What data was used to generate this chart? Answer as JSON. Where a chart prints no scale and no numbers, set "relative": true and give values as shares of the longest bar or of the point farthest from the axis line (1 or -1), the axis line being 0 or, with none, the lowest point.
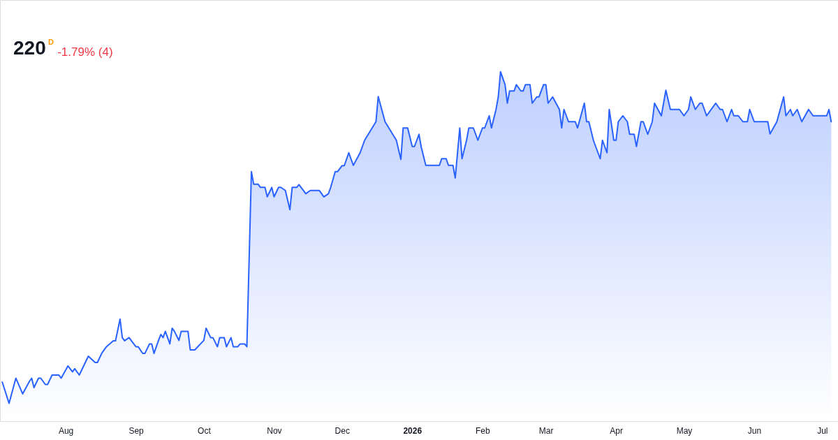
{
  "chart_data": {
    "type": "area",
    "title": "220$^{D}$",
    "subtitle": "-1.79% (4)",
    "relative": true,
    "xlim": [
      "2025-07-03",
      "2026-07-08"
    ],
    "xticks": [
      {
        "value": "2025-08-01",
        "label": "Aug"
      },
      {
        "value": "2025-09-01",
        "label": "Sep"
      },
      {
        "value": "2025-10-01",
        "label": "Oct"
      },
      {
        "value": "2025-11-01",
        "label": "Nov"
      },
      {
        "value": "2025-12-01",
        "label": "Dec"
      },
      {
        "value": "2026-01-01",
        "label": "2026"
      },
      {
        "value": "2026-02-01",
        "label": "Feb"
      },
      {
        "value": "2026-03-01",
        "label": "Mar"
      },
      {
        "value": "2026-04-01",
        "label": "Apr"
      },
      {
        "value": "2026-05-01",
        "label": "May"
      },
      {
        "value": "2026-06-01",
        "label": "Jun"
      },
      {
        "value": "2026-07-01",
        "label": "Jul"
      }
    ],
    "x": [
      "2025-07-04",
      "2025-07-07",
      "2025-07-10",
      "2025-07-13",
      "2025-07-16",
      "2025-07-17",
      "2025-07-18",
      "2025-07-20",
      "2025-07-21",
      "2025-07-23",
      "2025-07-24",
      "2025-07-26",
      "2025-07-29",
      "2025-07-30",
      "2025-08-02",
      "2025-08-04",
      "2025-08-05",
      "2025-08-07",
      "2025-08-11",
      "2025-08-14",
      "2025-08-15",
      "2025-08-17",
      "2025-08-19",
      "2025-08-22",
      "2025-08-23",
      "2025-08-25",
      "2025-08-26",
      "2025-08-27",
      "2025-08-29",
      "2025-08-30",
      "2025-09-01",
      "2025-09-02",
      "2025-09-04",
      "2025-09-05",
      "2025-09-07",
      "2025-09-08",
      "2025-09-09",
      "2025-09-11",
      "2025-09-12",
      "2025-09-13",
      "2025-09-14",
      "2025-09-16",
      "2025-09-17",
      "2025-09-18",
      "2025-09-20",
      "2025-09-21",
      "2025-09-24",
      "2025-09-25",
      "2025-09-27",
      "2025-10-01",
      "2025-10-02",
      "2025-10-04",
      "2025-10-05",
      "2025-10-07",
      "2025-10-08",
      "2025-10-10",
      "2025-10-11",
      "2025-10-13",
      "2025-10-14",
      "2025-10-16",
      "2025-10-17",
      "2025-10-19",
      "2025-10-20",
      "2025-10-22",
      "2025-10-23",
      "2025-10-25",
      "2025-10-26",
      "2025-10-28",
      "2025-10-29",
      "2025-10-31",
      "2025-11-01",
      "2025-11-03",
      "2025-11-04",
      "2025-11-06",
      "2025-11-08",
      "2025-11-09",
      "2025-11-11",
      "2025-11-12",
      "2025-11-14",
      "2025-11-15",
      "2025-11-17",
      "2025-11-21",
      "2025-11-23",
      "2025-11-25",
      "2025-11-26",
      "2025-11-28",
      "2025-11-29",
      "2025-12-01",
      "2025-12-02",
      "2025-12-04",
      "2025-12-06",
      "2025-12-09",
      "2025-12-11",
      "2025-12-16",
      "2025-12-17",
      "2025-12-20",
      "2025-12-25",
      "2025-12-27",
      "2025-12-28",
      "2025-12-30",
      "2026-01-01",
      "2026-01-02",
      "2026-01-04",
      "2026-01-05",
      "2026-01-07",
      "2026-01-13",
      "2026-01-14",
      "2026-01-16",
      "2026-01-17",
      "2026-01-19",
      "2026-01-20",
      "2026-01-22",
      "2026-01-23",
      "2026-01-25",
      "2026-01-26",
      "2026-01-28",
      "2026-01-30",
      "2026-02-01",
      "2026-02-02",
      "2026-02-04",
      "2026-02-05",
      "2026-02-07",
      "2026-02-08",
      "2026-02-09",
      "2026-02-11",
      "2026-02-12",
      "2026-02-13",
      "2026-02-15",
      "2026-02-16",
      "2026-02-18",
      "2026-02-19",
      "2026-02-20",
      "2026-02-22",
      "2026-02-23",
      "2026-02-25",
      "2026-02-26",
      "2026-02-28",
      "2026-03-01",
      "2026-03-02",
      "2026-03-04",
      "2026-03-07",
      "2026-03-08",
      "2026-03-09",
      "2026-03-11",
      "2026-03-14",
      "2026-03-15",
      "2026-03-18",
      "2026-03-19",
      "2026-03-20",
      "2026-03-22",
      "2026-03-23",
      "2026-03-25",
      "2026-03-26",
      "2026-03-28",
      "2026-03-29",
      "2026-03-31",
      "2026-04-01",
      "2026-04-02",
      "2026-04-04",
      "2026-04-06",
      "2026-04-07",
      "2026-04-09",
      "2026-04-10",
      "2026-04-12",
      "2026-04-13",
      "2026-04-15",
      "2026-04-17",
      "2026-04-18",
      "2026-04-21",
      "2026-04-23",
      "2026-04-25",
      "2026-04-29",
      "2026-05-01",
      "2026-05-03",
      "2026-05-04",
      "2026-05-06",
      "2026-05-08",
      "2026-05-09",
      "2026-05-11",
      "2026-05-15",
      "2026-05-17",
      "2026-05-18",
      "2026-05-20",
      "2026-05-22",
      "2026-05-23",
      "2026-05-25",
      "2026-05-27",
      "2026-05-29",
      "2026-05-30",
      "2026-06-01",
      "2026-06-07",
      "2026-06-08",
      "2026-06-11",
      "2026-06-14",
      "2026-06-15",
      "2026-06-17",
      "2026-06-18",
      "2026-06-20",
      "2026-06-22",
      "2026-06-25",
      "2026-06-27",
      "2026-07-03",
      "2026-07-04",
      "2026-07-05"
    ],
    "series": [
      {
        "color": "#2962ff",
        "values": [
          0.112,
          0.051,
          0.123,
          0.078,
          0.114,
          0.123,
          0.096,
          0.123,
          0.123,
          0.105,
          0.105,
          0.132,
          0.132,
          0.123,
          0.158,
          0.141,
          0.15,
          0.132,
          0.186,
          0.168,
          0.168,
          0.195,
          0.213,
          0.23,
          0.23,
          0.292,
          0.239,
          0.23,
          0.239,
          0.23,
          0.213,
          0.213,
          0.194,
          0.194,
          0.221,
          0.221,
          0.194,
          0.231,
          0.248,
          0.239,
          0.257,
          0.221,
          0.266,
          0.257,
          0.231,
          0.257,
          0.257,
          0.204,
          0.204,
          0.231,
          0.266,
          0.239,
          0.239,
          0.213,
          0.239,
          0.239,
          0.213,
          0.239,
          0.213,
          0.213,
          0.221,
          0.221,
          0.213,
          0.714,
          0.678,
          0.678,
          0.669,
          0.669,
          0.642,
          0.669,
          0.642,
          0.669,
          0.669,
          0.66,
          0.605,
          0.669,
          0.669,
          0.677,
          0.66,
          0.651,
          0.66,
          0.66,
          0.642,
          0.651,
          0.669,
          0.714,
          0.714,
          0.731,
          0.731,
          0.768,
          0.732,
          0.768,
          0.804,
          0.857,
          0.929,
          0.857,
          0.804,
          0.749,
          0.839,
          0.839,
          0.786,
          0.786,
          0.821,
          0.784,
          0.732,
          0.732,
          0.751,
          0.751,
          0.732,
          0.732,
          0.696,
          0.839,
          0.751,
          0.804,
          0.839,
          0.839,
          0.804,
          0.839,
          0.839,
          0.874,
          0.839,
          0.892,
          0.928,
          1,
          0.963,
          0.91,
          0.945,
          0.945,
          0.963,
          0.945,
          0.945,
          0.963,
          0.963,
          0.91,
          0.928,
          0.928,
          0.963,
          0.963,
          0.91,
          0.928,
          0.892,
          0.839,
          0.892,
          0.857,
          0.857,
          0.839,
          0.91,
          0.857,
          0.857,
          0.804,
          0.786,
          0.751,
          0.804,
          0.768,
          0.892,
          0.804,
          0.804,
          0.857,
          0.874,
          0.857,
          0.821,
          0.821,
          0.786,
          0.857,
          0.857,
          0.821,
          0.857,
          0.91,
          0.874,
          0.947,
          0.892,
          0.892,
          0.874,
          0.892,
          0.928,
          0.892,
          0.91,
          0.91,
          0.874,
          0.91,
          0.892,
          0.892,
          0.857,
          0.892,
          0.874,
          0.874,
          0.857,
          0.857,
          0.892,
          0.857,
          0.857,
          0.822,
          0.857,
          0.928,
          0.874,
          0.892,
          0.874,
          0.892,
          0.857,
          0.892,
          0.874,
          0.874,
          0.892,
          0.857
        ]
      }
    ]
  }
}
